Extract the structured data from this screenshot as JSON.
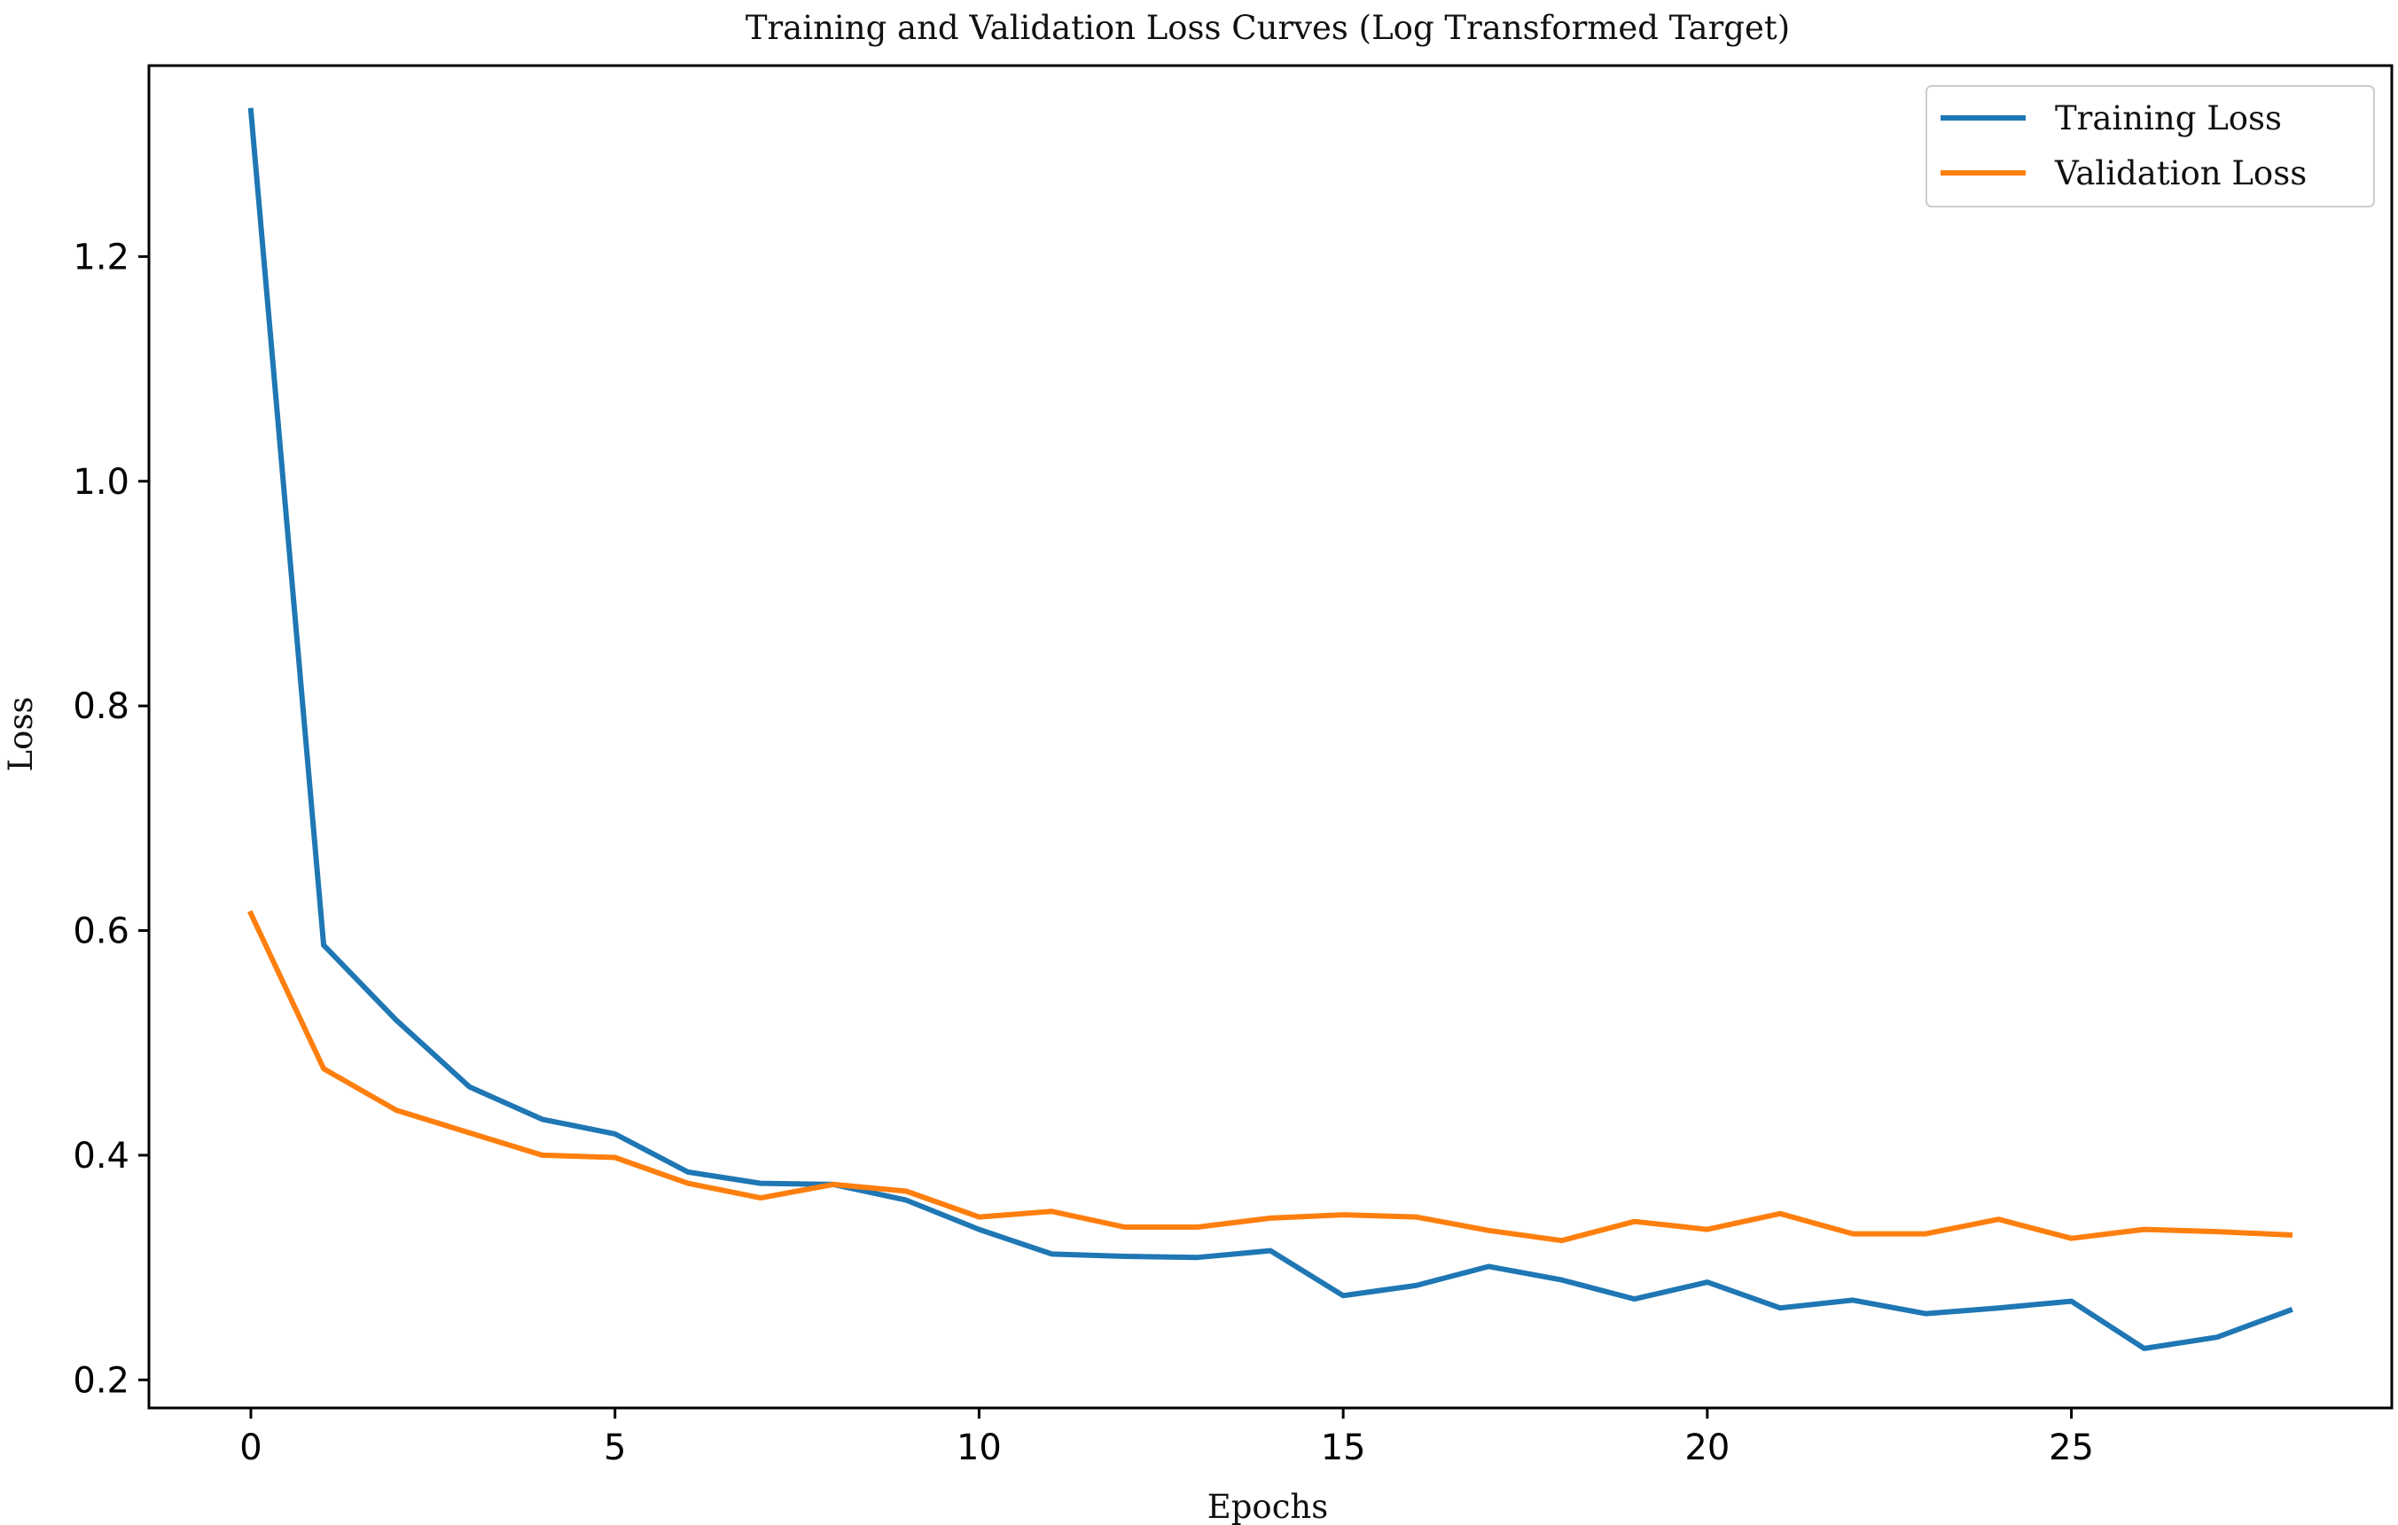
{
  "chart_data": {
    "type": "line",
    "title": "Training and Validation Loss Curves (Log Transformed Target)",
    "xlabel": "Epochs",
    "ylabel": "Loss",
    "xlim": [
      -1.4,
      29.4
    ],
    "ylim": [
      0.175,
      1.37
    ],
    "x_ticks": [
      0,
      5,
      10,
      15,
      20,
      25
    ],
    "y_ticks": [
      0.2,
      0.4,
      0.6,
      0.8,
      1.0,
      1.2
    ],
    "y_tick_labels": [
      "0.2",
      "0.4",
      "0.6",
      "0.8",
      "1.0",
      "1.2"
    ],
    "grid": false,
    "legend_position": "top-right",
    "x": [
      0,
      1,
      2,
      3,
      4,
      5,
      6,
      7,
      8,
      9,
      10,
      11,
      12,
      13,
      14,
      15,
      16,
      17,
      18,
      19,
      20,
      21,
      22,
      23,
      24,
      25,
      26,
      27,
      28
    ],
    "series": [
      {
        "name": "Training Loss",
        "color": "#1f77b4",
        "values": [
          1.33,
          0.587,
          0.52,
          0.461,
          0.432,
          0.419,
          0.385,
          0.375,
          0.374,
          0.36,
          0.334,
          0.312,
          0.31,
          0.309,
          0.315,
          0.275,
          0.284,
          0.301,
          0.289,
          0.272,
          0.287,
          0.264,
          0.271,
          0.259,
          0.264,
          0.27,
          0.228,
          0.238,
          0.262
        ]
      },
      {
        "name": "Validation Loss",
        "color": "#ff7f0e",
        "values": [
          0.615,
          0.477,
          0.44,
          0.42,
          0.4,
          0.398,
          0.375,
          0.362,
          0.374,
          0.368,
          0.345,
          0.35,
          0.336,
          0.336,
          0.344,
          0.347,
          0.345,
          0.333,
          0.324,
          0.341,
          0.334,
          0.348,
          0.33,
          0.33,
          0.343,
          0.326,
          0.334,
          0.332,
          0.329
        ]
      }
    ]
  }
}
